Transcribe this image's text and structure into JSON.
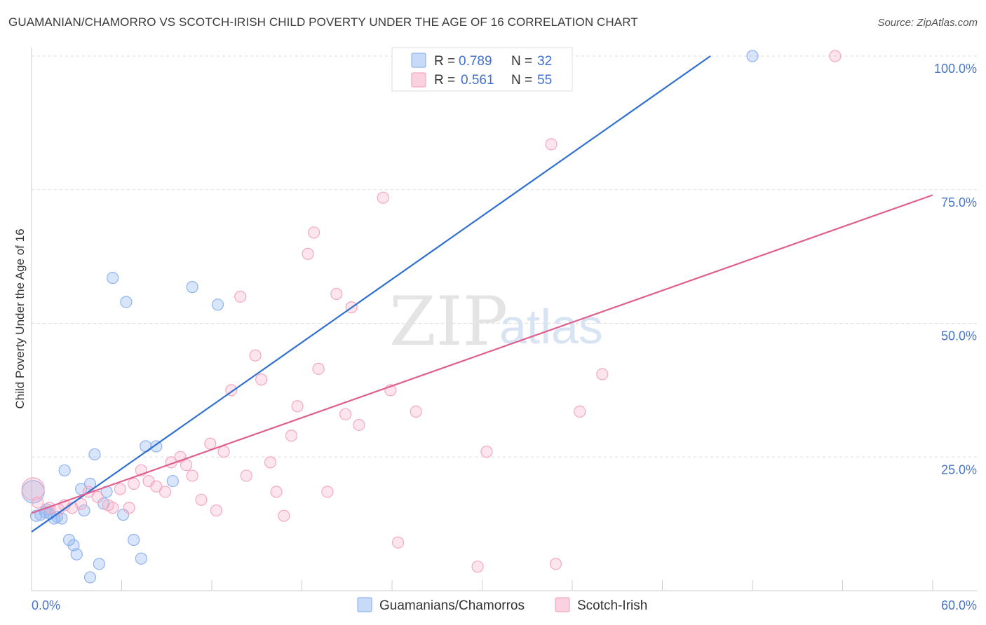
{
  "title": "GUAMANIAN/CHAMORRO VS SCOTCH-IRISH CHILD POVERTY UNDER THE AGE OF 16 CORRELATION CHART",
  "source": "Source: ZipAtlas.com",
  "watermark": {
    "zip": "ZIP",
    "atlas": "atlas"
  },
  "legend": {
    "rows": [
      {
        "r_label": "R =",
        "r_value": "0.789",
        "n_label": "N =",
        "n_value": "32",
        "color": "#8fb4f0"
      },
      {
        "r_label": "R =",
        "r_value": "0.561",
        "n_label": "N =",
        "n_value": "55",
        "color": "#f4a8c0"
      }
    ]
  },
  "chart_data": {
    "type": "scatter",
    "title": "GUAMANIAN/CHAMORRO VS SCOTCH-IRISH CHILD POVERTY UNDER THE AGE OF 16 CORRELATION CHART",
    "xlabel": "",
    "ylabel": "Child Poverty Under the Age of 16",
    "xlim": [
      0,
      60
    ],
    "ylim": [
      0,
      100
    ],
    "x_tick_labels": [
      "0.0%",
      "60.0%"
    ],
    "y_ticks": [
      25,
      50,
      75,
      100
    ],
    "y_tick_labels": [
      "25.0%",
      "50.0%",
      "75.0%",
      "100.0%"
    ],
    "grid": true,
    "legend_position": "top-center",
    "series": [
      {
        "name": "Guamanians/Chamorros",
        "color": "#8fb4f0",
        "line_color": "#2f6fd0",
        "trend": {
          "x": [
            0,
            45.2
          ],
          "y": [
            11,
            100
          ]
        },
        "points": [
          [
            0.1,
            18.5
          ],
          [
            0.3,
            14
          ],
          [
            0.6,
            14.2
          ],
          [
            0.9,
            14.7
          ],
          [
            1.0,
            15.2
          ],
          [
            1.2,
            14.4
          ],
          [
            1.5,
            13.5
          ],
          [
            1.7,
            13.8
          ],
          [
            2.0,
            13.5
          ],
          [
            2.2,
            22.5
          ],
          [
            2.5,
            9.5
          ],
          [
            2.8,
            8.5
          ],
          [
            3.0,
            6.8
          ],
          [
            3.3,
            19
          ],
          [
            3.5,
            15
          ],
          [
            3.9,
            2.5
          ],
          [
            3.9,
            20
          ],
          [
            4.2,
            25.5
          ],
          [
            4.5,
            5
          ],
          [
            4.8,
            16.3
          ],
          [
            5.0,
            18.5
          ],
          [
            5.4,
            58.5
          ],
          [
            6.1,
            14.2
          ],
          [
            6.3,
            54
          ],
          [
            6.8,
            9.5
          ],
          [
            7.3,
            6
          ],
          [
            7.6,
            27
          ],
          [
            8.3,
            27
          ],
          [
            9.4,
            20.5
          ],
          [
            10.7,
            56.8
          ],
          [
            12.4,
            53.5
          ],
          [
            48,
            100
          ]
        ]
      },
      {
        "name": "Scotch-Irish",
        "color": "#f4a8c0",
        "line_color": "#e0608e",
        "trend": {
          "x": [
            0,
            60
          ],
          "y": [
            14.5,
            74
          ]
        },
        "points": [
          [
            0.1,
            19
          ],
          [
            0.4,
            16.5
          ],
          [
            1.2,
            15.5
          ],
          [
            1.8,
            15.2
          ],
          [
            2.2,
            16
          ],
          [
            2.7,
            15.5
          ],
          [
            3.3,
            16.2
          ],
          [
            3.8,
            18.5
          ],
          [
            4.4,
            17.5
          ],
          [
            5.1,
            16
          ],
          [
            5.4,
            15.5
          ],
          [
            5.9,
            19
          ],
          [
            6.5,
            15.5
          ],
          [
            6.8,
            20
          ],
          [
            7.3,
            22.5
          ],
          [
            7.8,
            20.5
          ],
          [
            8.3,
            19.5
          ],
          [
            8.9,
            18.5
          ],
          [
            9.3,
            24
          ],
          [
            9.9,
            25
          ],
          [
            10.3,
            23.5
          ],
          [
            10.7,
            21.5
          ],
          [
            11.3,
            17
          ],
          [
            11.9,
            27.5
          ],
          [
            12.3,
            15
          ],
          [
            12.8,
            26
          ],
          [
            13.3,
            37.5
          ],
          [
            13.9,
            55
          ],
          [
            14.3,
            21.5
          ],
          [
            14.9,
            44
          ],
          [
            15.3,
            39.5
          ],
          [
            15.9,
            24
          ],
          [
            16.3,
            18.5
          ],
          [
            16.8,
            14
          ],
          [
            17.3,
            29
          ],
          [
            17.7,
            34.5
          ],
          [
            18.4,
            63
          ],
          [
            18.8,
            67
          ],
          [
            19.1,
            41.5
          ],
          [
            19.7,
            18.5
          ],
          [
            20.3,
            55.5
          ],
          [
            20.9,
            33
          ],
          [
            21.3,
            53
          ],
          [
            21.8,
            31
          ],
          [
            23.4,
            73.5
          ],
          [
            23.9,
            37.5
          ],
          [
            24.4,
            9
          ],
          [
            25.6,
            33.5
          ],
          [
            29.7,
            4.5
          ],
          [
            30.3,
            26
          ],
          [
            34.6,
            83.5
          ],
          [
            34.9,
            5
          ],
          [
            36.5,
            33.5
          ],
          [
            38,
            40.5
          ],
          [
            53.5,
            100
          ]
        ]
      }
    ]
  },
  "bottom_legend": [
    {
      "label": "Guamanians/Chamorros",
      "color": "#8fb4f0"
    },
    {
      "label": "Scotch-Irish",
      "color": "#f4a8c0"
    }
  ]
}
